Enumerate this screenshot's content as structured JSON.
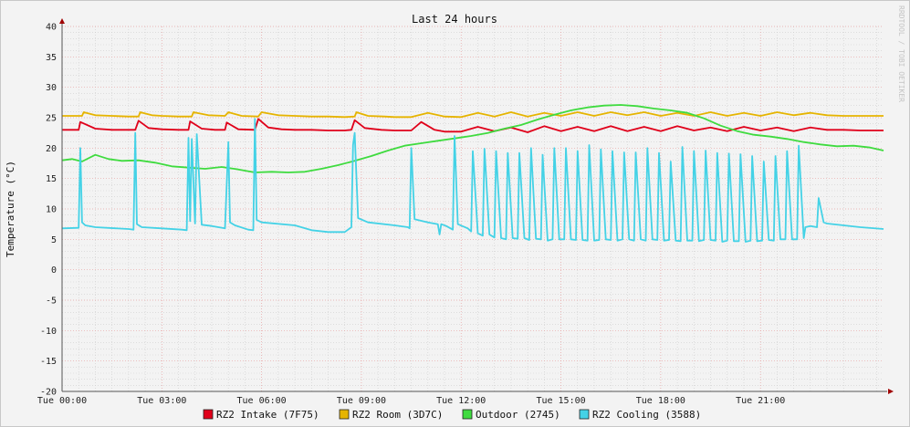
{
  "chart_data": {
    "type": "line",
    "title": "Last 24 hours",
    "ylabel": "Temperature (°C)",
    "xlabel": "",
    "watermark": "RRDTOOL / TOBI OETIKER",
    "ylim": [
      -20,
      40
    ],
    "y_ticks": [
      40,
      35,
      30,
      25,
      20,
      15,
      10,
      5,
      0,
      -5,
      -10,
      -15,
      -20
    ],
    "x_range_hours": [
      0,
      24.7
    ],
    "x_ticks": [
      {
        "h": 0,
        "label": "Tue 00:00"
      },
      {
        "h": 3,
        "label": "Tue 03:00"
      },
      {
        "h": 6,
        "label": "Tue 06:00"
      },
      {
        "h": 9,
        "label": "Tue 09:00"
      },
      {
        "h": 12,
        "label": "Tue 12:00"
      },
      {
        "h": 15,
        "label": "Tue 15:00"
      },
      {
        "h": 18,
        "label": "Tue 18:00"
      },
      {
        "h": 21,
        "label": "Tue 21:00"
      }
    ],
    "grid": true,
    "legend_position": "bottom",
    "series": [
      {
        "name": "RZ2 Intake (7F75)",
        "color": "#e0001a",
        "x": [
          0,
          0.5,
          0.55,
          1.0,
          1.5,
          2.0,
          2.2,
          2.3,
          2.6,
          3.0,
          3.5,
          3.8,
          3.85,
          4.2,
          4.6,
          4.9,
          4.95,
          5.3,
          5.8,
          5.9,
          6.2,
          6.6,
          7.0,
          7.5,
          8.0,
          8.5,
          8.7,
          8.8,
          9.1,
          9.6,
          10.0,
          10.5,
          10.8,
          11.2,
          11.5,
          12.0,
          12.5,
          13.0,
          13.5,
          14.0,
          14.5,
          15.0,
          15.5,
          16.0,
          16.5,
          17.0,
          17.5,
          18.0,
          18.5,
          19.0,
          19.5,
          20.0,
          20.5,
          21.0,
          21.5,
          22.0,
          22.5,
          23.0,
          23.5,
          24.0,
          24.7
        ],
        "values": [
          23.0,
          23.0,
          24.3,
          23.2,
          23.0,
          23.0,
          23.0,
          24.5,
          23.3,
          23.1,
          23.0,
          23.0,
          24.4,
          23.2,
          23.0,
          23.0,
          24.2,
          23.1,
          23.0,
          24.8,
          23.4,
          23.1,
          23.0,
          23.0,
          22.9,
          22.9,
          23.0,
          24.6,
          23.3,
          23.0,
          22.9,
          22.9,
          24.3,
          23.0,
          22.7,
          22.7,
          23.5,
          22.8,
          23.4,
          22.6,
          23.6,
          22.8,
          23.5,
          22.8,
          23.6,
          22.8,
          23.5,
          22.8,
          23.6,
          22.9,
          23.4,
          22.8,
          23.5,
          22.9,
          23.4,
          22.8,
          23.4,
          23.0,
          23.0,
          22.9,
          22.9
        ]
      },
      {
        "name": "RZ2 Room (3D7C)",
        "color": "#e6b400",
        "x": [
          0,
          0.6,
          0.65,
          1.0,
          1.5,
          2.0,
          2.3,
          2.35,
          2.7,
          3.0,
          3.5,
          3.9,
          3.95,
          4.4,
          4.9,
          5.0,
          5.4,
          5.9,
          6.0,
          6.5,
          7.0,
          7.5,
          8.0,
          8.5,
          8.8,
          8.85,
          9.2,
          9.7,
          10.0,
          10.5,
          11.0,
          11.5,
          12.0,
          12.5,
          13.0,
          13.5,
          14.0,
          14.5,
          15.0,
          15.5,
          16.0,
          16.5,
          17.0,
          17.5,
          18.0,
          18.5,
          19.0,
          19.5,
          20.0,
          20.5,
          21.0,
          21.5,
          22.0,
          22.5,
          23.0,
          23.5,
          24.0,
          24.7
        ],
        "values": [
          25.3,
          25.3,
          25.9,
          25.4,
          25.3,
          25.2,
          25.2,
          25.9,
          25.4,
          25.3,
          25.2,
          25.2,
          25.9,
          25.4,
          25.3,
          25.9,
          25.3,
          25.2,
          25.9,
          25.4,
          25.3,
          25.2,
          25.2,
          25.1,
          25.2,
          25.9,
          25.3,
          25.2,
          25.1,
          25.1,
          25.8,
          25.2,
          25.1,
          25.8,
          25.2,
          25.9,
          25.2,
          25.8,
          25.3,
          25.9,
          25.3,
          25.9,
          25.4,
          25.9,
          25.3,
          25.8,
          25.3,
          25.9,
          25.3,
          25.8,
          25.3,
          25.9,
          25.4,
          25.8,
          25.4,
          25.3,
          25.3,
          25.3
        ]
      },
      {
        "name": "Outdoor (2745)",
        "color": "#3fdb3f",
        "x": [
          0,
          0.3,
          0.6,
          1.0,
          1.4,
          1.8,
          2.3,
          2.8,
          3.3,
          3.8,
          4.3,
          4.8,
          5.3,
          5.8,
          6.3,
          6.8,
          7.3,
          7.8,
          8.3,
          8.8,
          9.3,
          9.8,
          10.3,
          10.8,
          11.3,
          11.8,
          12.3,
          12.8,
          13.3,
          13.8,
          14.3,
          14.8,
          15.3,
          15.8,
          16.3,
          16.8,
          17.3,
          17.8,
          18.3,
          18.8,
          19.3,
          19.8,
          20.3,
          20.8,
          21.3,
          21.8,
          22.3,
          22.8,
          23.3,
          23.8,
          24.3,
          24.7
        ],
        "values": [
          18.0,
          18.2,
          17.8,
          18.9,
          18.2,
          17.9,
          18.0,
          17.6,
          17.0,
          16.8,
          16.6,
          16.9,
          16.5,
          16.0,
          16.1,
          16.0,
          16.1,
          16.6,
          17.2,
          17.9,
          18.7,
          19.6,
          20.4,
          20.8,
          21.2,
          21.6,
          22.0,
          22.5,
          23.2,
          23.8,
          24.7,
          25.5,
          26.2,
          26.7,
          27.0,
          27.1,
          26.9,
          26.5,
          26.2,
          25.8,
          24.9,
          23.7,
          22.8,
          22.2,
          21.9,
          21.5,
          21.0,
          20.6,
          20.3,
          20.4,
          20.1,
          19.6
        ]
      },
      {
        "name": "RZ2 Cooling (3588)",
        "color": "#44d2e6",
        "x": [
          0,
          0.5,
          0.55,
          0.6,
          0.7,
          1.0,
          2.0,
          2.15,
          2.2,
          2.25,
          2.4,
          3.0,
          3.6,
          3.75,
          3.8,
          3.85,
          3.9,
          4.0,
          4.05,
          4.2,
          4.5,
          4.9,
          5.0,
          5.05,
          5.2,
          5.6,
          5.75,
          5.8,
          5.85,
          6.0,
          7.0,
          7.5,
          8.0,
          8.5,
          8.7,
          8.75,
          8.8,
          8.9,
          9.2,
          10.0,
          10.4,
          10.45,
          10.5,
          10.6,
          11.0,
          11.3,
          11.35,
          11.4,
          11.55,
          11.75,
          11.8,
          11.9,
          12.2,
          12.3,
          12.35,
          12.5,
          12.65,
          12.7,
          12.85,
          13.0,
          13.05,
          13.2,
          13.35,
          13.4,
          13.55,
          13.7,
          13.75,
          13.9,
          14.05,
          14.1,
          14.25,
          14.4,
          14.45,
          14.6,
          14.75,
          14.8,
          14.95,
          15.1,
          15.15,
          15.3,
          15.45,
          15.5,
          15.65,
          15.8,
          15.85,
          16.0,
          16.15,
          16.2,
          16.35,
          16.5,
          16.55,
          16.7,
          16.85,
          16.9,
          17.05,
          17.2,
          17.25,
          17.4,
          17.55,
          17.6,
          17.75,
          17.9,
          17.95,
          18.1,
          18.25,
          18.3,
          18.45,
          18.6,
          18.65,
          18.8,
          18.95,
          19.0,
          19.15,
          19.3,
          19.35,
          19.5,
          19.65,
          19.7,
          19.85,
          20.0,
          20.05,
          20.2,
          20.35,
          20.4,
          20.55,
          20.7,
          20.75,
          20.9,
          21.05,
          21.1,
          21.25,
          21.4,
          21.45,
          21.6,
          21.75,
          21.8,
          21.95,
          22.1,
          22.15,
          22.3,
          22.35,
          22.5,
          22.7,
          22.75,
          22.9,
          23.0,
          23.5,
          24.0,
          24.7
        ],
        "values": [
          6.8,
          6.9,
          20.0,
          7.8,
          7.3,
          7.0,
          6.7,
          6.6,
          22.5,
          7.5,
          7.0,
          6.8,
          6.6,
          6.5,
          21.7,
          8.0,
          21.5,
          7.6,
          22.3,
          7.4,
          7.2,
          6.8,
          21.0,
          7.8,
          7.3,
          6.6,
          6.5,
          24.8,
          8.2,
          7.8,
          7.3,
          6.5,
          6.2,
          6.2,
          7.0,
          20.5,
          22.5,
          8.5,
          7.8,
          7.3,
          7.0,
          6.8,
          20.0,
          8.3,
          7.8,
          7.5,
          5.8,
          7.5,
          7.2,
          6.6,
          22.0,
          7.5,
          6.8,
          6.3,
          19.5,
          6.0,
          5.6,
          19.9,
          5.8,
          5.3,
          19.5,
          5.2,
          5.0,
          19.2,
          5.2,
          5.1,
          19.2,
          5.2,
          4.9,
          20.0,
          5.1,
          5.0,
          18.9,
          4.8,
          5.0,
          20.0,
          5.0,
          5.0,
          20.0,
          5.0,
          4.9,
          19.5,
          4.9,
          4.8,
          20.5,
          4.8,
          4.9,
          19.8,
          5.0,
          4.9,
          19.5,
          4.8,
          5.0,
          19.3,
          5.0,
          4.8,
          19.3,
          5.0,
          4.8,
          20.0,
          5.0,
          4.9,
          19.2,
          4.8,
          4.9,
          17.8,
          4.8,
          4.7,
          20.2,
          4.8,
          4.8,
          19.5,
          4.7,
          4.9,
          19.6,
          4.9,
          4.8,
          19.2,
          4.6,
          4.8,
          19.1,
          4.7,
          4.7,
          19.0,
          4.6,
          4.8,
          18.7,
          4.7,
          4.8,
          17.8,
          4.9,
          4.8,
          18.7,
          5.0,
          5.0,
          19.5,
          5.0,
          5.0,
          20.4,
          5.2,
          7.0,
          7.2,
          7.0,
          11.8,
          7.8,
          7.6,
          7.3,
          7.0,
          6.7
        ]
      }
    ]
  }
}
